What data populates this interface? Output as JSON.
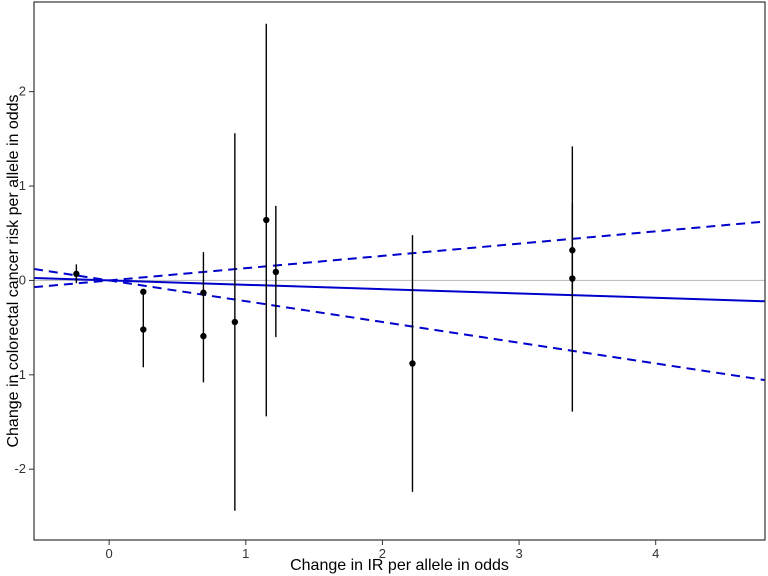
{
  "chart_data": {
    "type": "scatter",
    "title": "",
    "xlabel": "Change in IR per allele in odds",
    "ylabel": "Change in colorectal cancer risk per allele in odds",
    "xlim": [
      -0.55,
      4.8
    ],
    "ylim": [
      -2.75,
      2.95
    ],
    "x_ticks": [
      0,
      1,
      2,
      3,
      4
    ],
    "y_ticks": [
      -2,
      -1,
      0,
      1,
      2
    ],
    "grid": false,
    "reference_line_y": 0,
    "points": [
      {
        "x": -0.24,
        "y": 0.07,
        "lo": -0.03,
        "hi": 0.17
      },
      {
        "x": 0.25,
        "y": -0.12,
        "lo": -0.12,
        "hi": -0.12
      },
      {
        "x": 0.25,
        "y": -0.52,
        "lo": -0.92,
        "hi": -0.12
      },
      {
        "x": 0.69,
        "y": -0.13,
        "lo": -0.13,
        "hi": 0.3
      },
      {
        "x": 0.69,
        "y": -0.59,
        "lo": -1.08,
        "hi": -0.13
      },
      {
        "x": 0.92,
        "y": -0.44,
        "lo": -2.44,
        "hi": 1.56
      },
      {
        "x": 1.15,
        "y": 0.64,
        "lo": -1.44,
        "hi": 2.72
      },
      {
        "x": 1.22,
        "y": 0.09,
        "lo": -0.6,
        "hi": 0.79
      },
      {
        "x": 2.22,
        "y": -0.88,
        "lo": -2.24,
        "hi": 0.48
      },
      {
        "x": 3.39,
        "y": 0.32,
        "lo": -0.18,
        "hi": 0.82
      },
      {
        "x": 3.39,
        "y": 0.02,
        "lo": -1.39,
        "hi": 1.42
      }
    ],
    "fit_line": {
      "intercept": 0.0,
      "slope": -0.046
    },
    "ci_upper": {
      "intercept": 0.0,
      "slope": 0.13
    },
    "ci_lower": {
      "intercept": 0.0,
      "slope": -0.22
    },
    "colors": {
      "fit": "#0000cc",
      "ci": "#0000cc",
      "points": "#000000",
      "reference": "#bfbfbf",
      "border": "#333333"
    }
  }
}
